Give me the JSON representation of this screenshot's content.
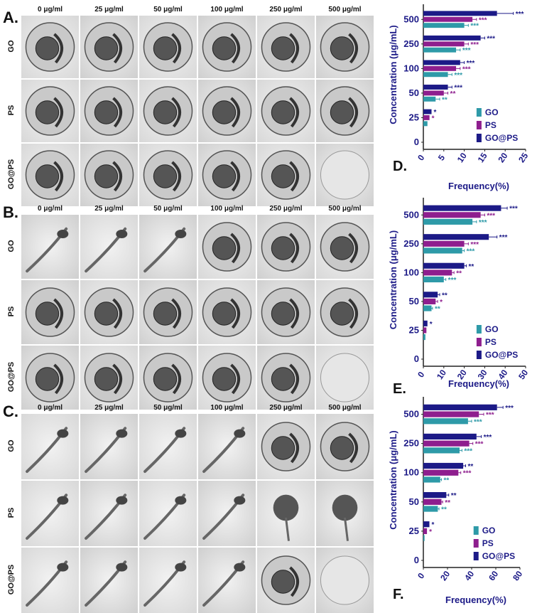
{
  "colors": {
    "go": "#2e9aa8",
    "ps": "#8e1e8e",
    "gops": "#1c1a87",
    "axis_text": "#1c1a87"
  },
  "grid": {
    "columns": [
      "0 μg/ml",
      "25 μg/ml",
      "50 μg/ml",
      "100 μg/ml",
      "250 μg/ml",
      "500 μg/ml"
    ],
    "rows": [
      "GO",
      "PS",
      "GO@PS"
    ]
  },
  "panels": {
    "A": {
      "letter": "A."
    },
    "B": {
      "letter": "B."
    },
    "C": {
      "letter": "C."
    }
  },
  "images": {
    "A": [
      [
        "embryo",
        "embryo",
        "embryo",
        "embryo",
        "embryo",
        "embryo"
      ],
      [
        "embryo",
        "embryo",
        "embryo",
        "embryo",
        "embryo",
        "embryo"
      ],
      [
        "embryo",
        "embryo",
        "embryo",
        "embryo",
        "embryo",
        "empty"
      ]
    ],
    "B": [
      [
        "larva",
        "larva",
        "larva",
        "embryo",
        "embryo",
        "embryo"
      ],
      [
        "embryo",
        "embryo",
        "embryo",
        "embryo",
        "embryo",
        "embryo"
      ],
      [
        "embryo",
        "embryo",
        "embryo",
        "embryo",
        "embryo",
        "empty"
      ]
    ],
    "C": [
      [
        "larva",
        "larva",
        "larva",
        "larva",
        "embryo",
        "embryo"
      ],
      [
        "larva",
        "larva",
        "larva",
        "larva",
        "deformed",
        "deformed"
      ],
      [
        "larva",
        "larva",
        "larva",
        "larva",
        "embryo",
        "empty"
      ]
    ]
  },
  "chart_data": [
    {
      "panel": "D.",
      "type": "bar",
      "orientation": "horizontal",
      "ylabel": "Concentration (μg/mL)",
      "xlabel": "Frequency(%)",
      "categories": [
        "0",
        "25",
        "50",
        "100",
        "250",
        "500"
      ],
      "xlim": [
        0,
        25
      ],
      "xticks": [
        "0",
        "5",
        "10",
        "15",
        "20",
        "25"
      ],
      "legend_position": "bottom-right",
      "series": [
        {
          "name": "GO",
          "values": [
            0,
            1,
            3,
            6,
            8,
            10
          ],
          "errors": [
            0,
            0,
            1,
            1,
            1,
            1
          ],
          "sig": [
            "",
            "",
            "**",
            "***",
            "***",
            "***"
          ]
        },
        {
          "name": "PS",
          "values": [
            0,
            1.5,
            5,
            8,
            10,
            12
          ],
          "errors": [
            0,
            0,
            1,
            1,
            1,
            1
          ],
          "sig": [
            "",
            "*",
            "**",
            "***",
            "***",
            "***"
          ]
        },
        {
          "name": "GO@PS",
          "values": [
            0,
            2,
            6,
            9,
            14,
            18
          ],
          "errors": [
            0,
            0,
            1,
            1,
            1,
            4
          ],
          "sig": [
            "",
            "*",
            "***",
            "***",
            "***",
            "***"
          ]
        }
      ]
    },
    {
      "panel": "E.",
      "type": "bar",
      "orientation": "horizontal",
      "ylabel": "Concentration (μg/mL)",
      "xlabel": "Frequency(%)",
      "categories": [
        "0",
        "25",
        "50",
        "100",
        "250",
        "500"
      ],
      "xlim": [
        0,
        50
      ],
      "xticks": [
        "0",
        "10",
        "20",
        "30",
        "40",
        "50"
      ],
      "legend_position": "bottom-right",
      "series": [
        {
          "name": "GO",
          "values": [
            0,
            1,
            4,
            10,
            19,
            24
          ],
          "errors": [
            0,
            0,
            0.5,
            1,
            1,
            2
          ],
          "sig": [
            "",
            "",
            "**",
            "***",
            "***",
            "***"
          ]
        },
        {
          "name": "PS",
          "values": [
            0,
            1.5,
            6,
            14,
            20,
            28
          ],
          "errors": [
            0,
            0,
            1,
            1,
            2,
            2
          ],
          "sig": [
            "",
            "",
            "*",
            "**",
            "***",
            "***"
          ]
        },
        {
          "name": "GO@PS",
          "values": [
            0,
            2,
            7,
            20,
            32,
            38
          ],
          "errors": [
            0,
            0,
            1,
            1,
            4,
            3
          ],
          "sig": [
            "",
            "*",
            "**",
            "**",
            "***",
            "***"
          ]
        }
      ]
    },
    {
      "panel": "F.",
      "type": "bar",
      "orientation": "horizontal",
      "ylabel": "Concentration (μg/mL)",
      "xlabel": "Frequency(%)",
      "categories": [
        "0",
        "25",
        "50",
        "100",
        "250",
        "500"
      ],
      "xlim": [
        0,
        80
      ],
      "xticks": [
        "0",
        "20",
        "40",
        "60",
        "80"
      ],
      "legend_position": "bottom-right",
      "series": [
        {
          "name": "GO",
          "values": [
            0,
            1,
            12,
            14,
            30,
            37
          ],
          "errors": [
            0,
            0,
            1,
            1,
            2,
            3
          ],
          "sig": [
            "",
            "",
            "**",
            "**",
            "***",
            "***"
          ]
        },
        {
          "name": "PS",
          "values": [
            0,
            3,
            15,
            29,
            38,
            46
          ],
          "errors": [
            0,
            0,
            1,
            2,
            3,
            4
          ],
          "sig": [
            "",
            "*",
            "**",
            "***",
            "***",
            "***"
          ]
        },
        {
          "name": "GO@PS",
          "values": [
            0,
            5,
            19,
            33,
            44,
            61
          ],
          "errors": [
            0,
            0,
            2,
            2,
            4,
            5
          ],
          "sig": [
            "",
            "*",
            "**",
            "**",
            "***",
            "***"
          ]
        }
      ]
    }
  ]
}
